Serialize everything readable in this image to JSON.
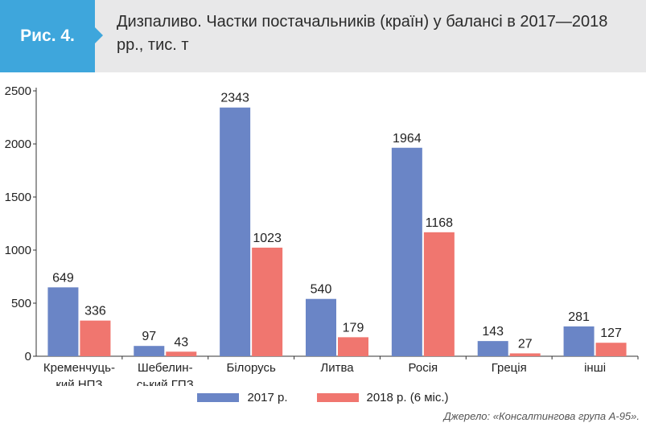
{
  "figure": {
    "badge": "Рис. 4.",
    "title": "Дизпаливо. Частки постачальників (країн) у балансі в 2017—2018 рр., тис. т",
    "source": "Джерело: «Консалтингова група А-95»."
  },
  "colors": {
    "badge": "#3ea6dc",
    "header_bg": "#e8e8e9",
    "series_2017": "#6a85c6",
    "series_2018": "#f0766f"
  },
  "chart_data": {
    "type": "bar",
    "categories": [
      [
        "Кременчуць-",
        "кий НПЗ"
      ],
      [
        "Шебелин-",
        "ський ГПЗ"
      ],
      [
        "Білорусь"
      ],
      [
        "Литва"
      ],
      [
        "Росія"
      ],
      [
        "Греція"
      ],
      [
        "інші"
      ]
    ],
    "series": [
      {
        "name": "2017 р.",
        "values": [
          649,
          97,
          2343,
          540,
          1964,
          143,
          281
        ]
      },
      {
        "name": "2018 р. (6 міс.)",
        "values": [
          336,
          43,
          1023,
          179,
          1168,
          27,
          127
        ]
      }
    ],
    "yticks": [
      0,
      500,
      1000,
      1500,
      2000,
      2500
    ],
    "ylim": [
      0,
      2500
    ],
    "grid": false,
    "legend_position": "bottom",
    "data_labels": true
  }
}
